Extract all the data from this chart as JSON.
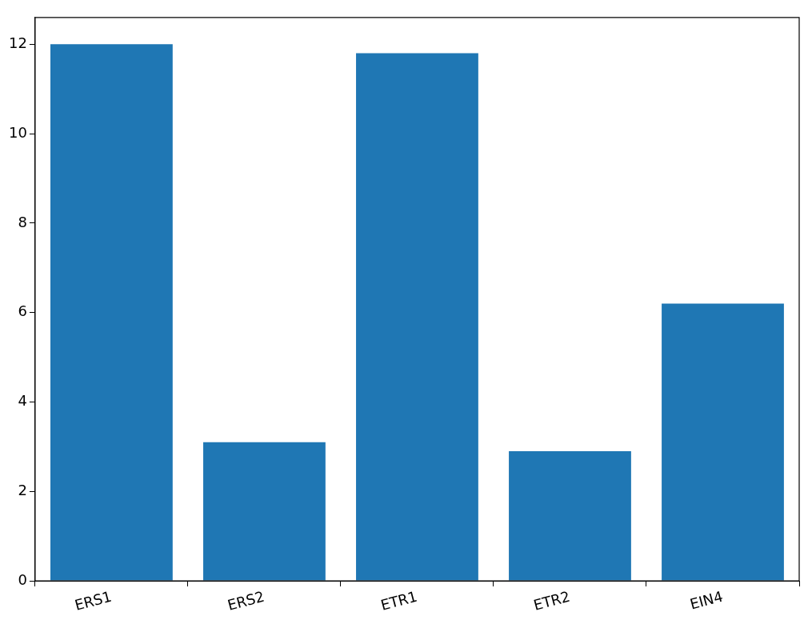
{
  "chart_data": {
    "type": "bar",
    "categories": [
      "ERS1",
      "ERS2",
      "ETR1",
      "ETR2",
      "EIN4"
    ],
    "values": [
      12.0,
      3.1,
      11.8,
      2.9,
      6.2
    ],
    "color": "#1f77b4",
    "ylim": [
      0,
      12.6
    ],
    "yticks": [
      0,
      2,
      4,
      6,
      8,
      10,
      12
    ],
    "legend": false
  }
}
